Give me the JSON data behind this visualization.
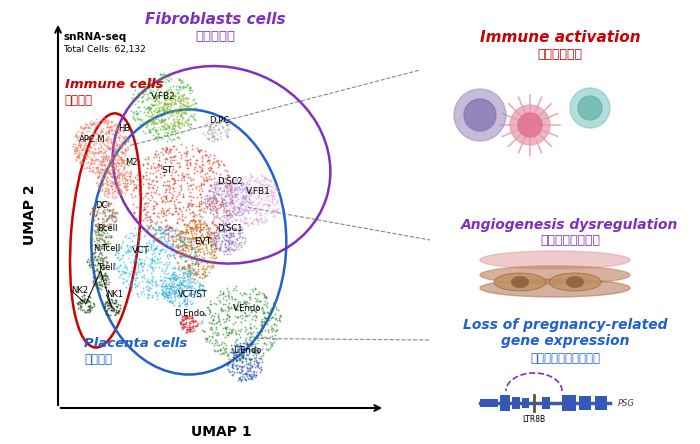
{
  "bg_color": "#ffffff",
  "snrna_label": "snRNA-seq",
  "total_cells_label": "Total Cells: 62,132",
  "umap1_label": "UMAP 1",
  "umap2_label": "UMAP 2",
  "immune_cells_en": "Immune cells",
  "immune_cells_zh": "免疫細胞",
  "fibroblasts_en": "Fibroblasts cells",
  "fibroblasts_zh": "成纖維細胞",
  "placenta_en": "Placenta cells",
  "placenta_zh": "胎盤細胞",
  "immune_act_en": "Immune activation",
  "immune_act_zh": "免疫反應激活",
  "angio_en": "Angiogenesis dysregulation",
  "angio_zh": "血管生成基因失調",
  "loss_en1": "Loss of pregnancy-related",
  "loss_en2": "gene expression",
  "loss_zh": "妍娠相關基因表達減少",
  "ltr8b_label": "LTR8B",
  "psg_label": "PSG"
}
